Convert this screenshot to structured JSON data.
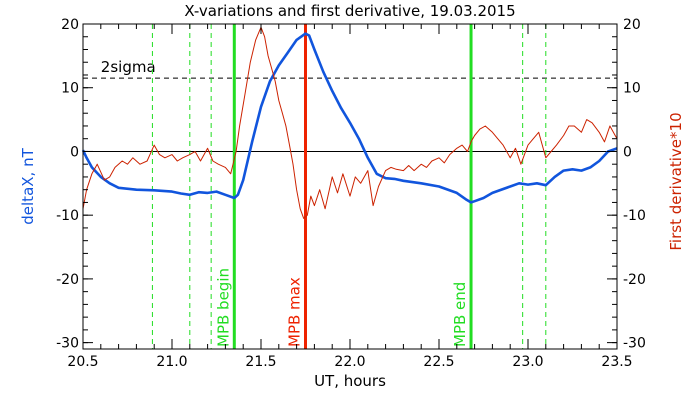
{
  "chart_data": {
    "type": "line",
    "title": "X-variations and first derivative, 19.03.2015",
    "xlabel": "UT, hours",
    "ylabel_left": "deltaX, nT",
    "ylabel_right": "First derivative*10",
    "xlim": [
      20.5,
      23.5
    ],
    "ylim": [
      -31,
      20
    ],
    "x_ticks": [
      20.5,
      21.0,
      21.5,
      22.0,
      22.5,
      23.0,
      23.5
    ],
    "x_tick_labels": [
      "20.5",
      "21.0",
      "21.5",
      "22.0",
      "22.5",
      "23.0",
      "23.5"
    ],
    "y_ticks": [
      -30,
      -20,
      -10,
      0,
      10,
      20
    ],
    "y_tick_labels": [
      "-30",
      "-20",
      "-10",
      "0",
      "10",
      "20"
    ],
    "minor_x_step": 0.1,
    "minor_y_step": 2,
    "zero_line": 0,
    "sigma_line": {
      "value": 11.5,
      "label": "2sigma"
    },
    "colors": {
      "deltaX": "#1155dd",
      "derivative": "#cc2200",
      "mpb": "#22dd22",
      "max": "#ee2200",
      "axes": "#000000"
    },
    "series": [
      {
        "name": "deltaX, nT",
        "color": "#1155dd",
        "x": [
          20.5,
          20.52,
          20.55,
          20.6,
          20.65,
          20.7,
          20.8,
          20.9,
          21.0,
          21.05,
          21.1,
          21.15,
          21.2,
          21.25,
          21.3,
          21.35,
          21.37,
          21.4,
          21.45,
          21.5,
          21.55,
          21.6,
          21.65,
          21.7,
          21.75,
          21.77,
          21.8,
          21.85,
          21.9,
          21.95,
          22.0,
          22.05,
          22.1,
          22.15,
          22.2,
          22.25,
          22.3,
          22.4,
          22.5,
          22.6,
          22.65,
          22.68,
          22.7,
          22.75,
          22.8,
          22.9,
          22.95,
          23.0,
          23.05,
          23.1,
          23.15,
          23.2,
          23.25,
          23.3,
          23.35,
          23.4,
          23.45,
          23.5
        ],
        "values": [
          0.2,
          -1.0,
          -2.5,
          -4.0,
          -5.0,
          -5.7,
          -6.0,
          -6.1,
          -6.3,
          -6.6,
          -6.8,
          -6.4,
          -6.5,
          -6.3,
          -6.8,
          -7.3,
          -6.8,
          -4.5,
          1.5,
          7.0,
          11.0,
          13.5,
          15.5,
          17.5,
          18.5,
          18.2,
          16.0,
          12.5,
          9.5,
          6.8,
          4.5,
          2.0,
          -1.0,
          -3.5,
          -4.2,
          -4.3,
          -4.6,
          -5.0,
          -5.5,
          -6.5,
          -7.5,
          -8.0,
          -7.8,
          -7.3,
          -6.5,
          -5.5,
          -5.0,
          -5.2,
          -5.0,
          -5.3,
          -4.0,
          -3.0,
          -2.8,
          -3.0,
          -2.5,
          -1.5,
          0.0,
          0.5
        ]
      },
      {
        "name": "First derivative*10",
        "color": "#cc2200",
        "x": [
          20.5,
          20.52,
          20.55,
          20.58,
          20.62,
          20.65,
          20.68,
          20.72,
          20.75,
          20.78,
          20.82,
          20.86,
          20.9,
          20.93,
          20.96,
          21.0,
          21.03,
          21.06,
          21.1,
          21.13,
          21.16,
          21.2,
          21.23,
          21.26,
          21.3,
          21.33,
          21.36,
          21.38,
          21.41,
          21.44,
          21.47,
          21.5,
          21.52,
          21.54,
          21.56,
          21.58,
          21.6,
          21.62,
          21.64,
          21.66,
          21.68,
          21.7,
          21.72,
          21.74,
          21.76,
          21.78,
          21.8,
          21.83,
          21.86,
          21.9,
          21.93,
          21.96,
          22.0,
          22.03,
          22.06,
          22.1,
          22.13,
          22.16,
          22.2,
          22.23,
          22.26,
          22.3,
          22.33,
          22.36,
          22.4,
          22.43,
          22.46,
          22.5,
          22.53,
          22.56,
          22.6,
          22.63,
          22.66,
          22.68,
          22.7,
          22.73,
          22.76,
          22.8,
          22.83,
          22.86,
          22.9,
          22.93,
          22.96,
          23.0,
          23.03,
          23.06,
          23.1,
          23.13,
          23.16,
          23.2,
          23.23,
          23.26,
          23.3,
          23.33,
          23.36,
          23.4,
          23.43,
          23.46,
          23.5
        ],
        "values": [
          -9.0,
          -6.0,
          -3.5,
          -2.0,
          -4.5,
          -4.0,
          -2.5,
          -1.5,
          -2.0,
          -1.0,
          -2.0,
          -1.5,
          1.0,
          -0.5,
          -1.0,
          -0.5,
          -1.5,
          -1.0,
          -0.5,
          0.0,
          -1.5,
          0.5,
          -1.5,
          -2.0,
          -2.5,
          -3.5,
          0.0,
          4.0,
          9.0,
          14.0,
          17.5,
          19.5,
          18.0,
          15.0,
          13.0,
          11.0,
          8.0,
          6.0,
          4.0,
          1.0,
          -2.0,
          -6.0,
          -9.0,
          -10.5,
          -10.0,
          -7.0,
          -8.5,
          -6.0,
          -9.0,
          -4.0,
          -6.5,
          -3.5,
          -7.0,
          -4.0,
          -5.0,
          -3.0,
          -8.5,
          -5.5,
          -3.0,
          -2.5,
          -2.8,
          -3.0,
          -2.2,
          -3.0,
          -2.0,
          -2.5,
          -1.5,
          -1.0,
          -1.8,
          -0.5,
          0.5,
          1.0,
          0.0,
          1.5,
          2.5,
          3.5,
          4.0,
          3.0,
          2.0,
          1.0,
          -1.0,
          0.5,
          -2.0,
          1.0,
          2.0,
          3.0,
          -1.0,
          0.0,
          1.0,
          2.5,
          4.0,
          4.0,
          3.0,
          5.0,
          4.5,
          3.0,
          1.5,
          4.0,
          2.0
        ]
      }
    ],
    "vertical_markers": [
      {
        "x": 20.89,
        "style": "dashed",
        "color": "#22dd22",
        "label": ""
      },
      {
        "x": 21.1,
        "style": "dashed",
        "color": "#22dd22",
        "label": ""
      },
      {
        "x": 21.22,
        "style": "dashed",
        "color": "#22dd22",
        "label": ""
      },
      {
        "x": 21.35,
        "style": "solid",
        "color": "#22dd22",
        "label": "MPB begin"
      },
      {
        "x": 21.75,
        "style": "solid",
        "color": "#ee2200",
        "label": "MPB max"
      },
      {
        "x": 22.68,
        "style": "solid",
        "color": "#22dd22",
        "label": "MPB end"
      },
      {
        "x": 22.97,
        "style": "dashed",
        "color": "#22dd22",
        "label": ""
      },
      {
        "x": 23.1,
        "style": "dashed",
        "color": "#22dd22",
        "label": ""
      }
    ]
  }
}
